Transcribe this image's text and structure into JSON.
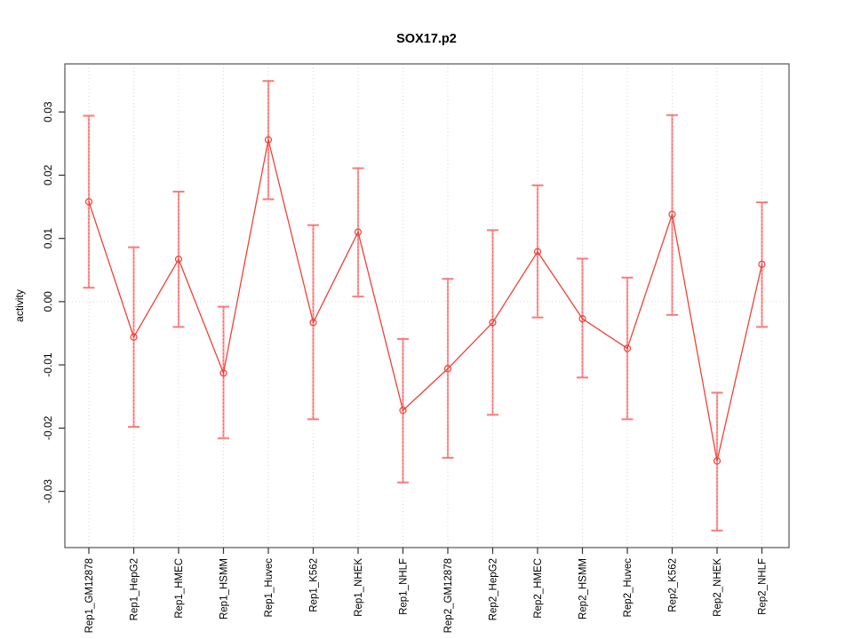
{
  "chart_data": {
    "type": "line",
    "title": "SOX17.p2",
    "xlabel": "",
    "ylabel": "activity",
    "categories": [
      "Rep1_GM12878",
      "Rep1_HepG2",
      "Rep1_HMEC",
      "Rep1_HSMM",
      "Rep1_Huvec",
      "Rep1_K562",
      "Rep1_NHEK",
      "Rep1_NHLF",
      "Rep2_GM12878",
      "Rep2_HepG2",
      "Rep2_HMEC",
      "Rep2_HSMM",
      "Rep2_Huvec",
      "Rep2_K562",
      "Rep2_NHEK",
      "Rep2_NHLF"
    ],
    "series": [
      {
        "name": "activity",
        "marker": "open-circle",
        "values": [
          0.0158,
          -0.0056,
          0.0067,
          -0.0113,
          0.0256,
          -0.0033,
          0.011,
          -0.0172,
          -0.0106,
          -0.0033,
          0.0079,
          -0.0027,
          -0.0074,
          0.0138,
          -0.0252,
          0.0059
        ],
        "error_low": [
          0.0022,
          -0.0198,
          -0.004,
          -0.0216,
          0.0162,
          -0.0186,
          0.0008,
          -0.0286,
          -0.0247,
          -0.0179,
          -0.0025,
          -0.012,
          -0.0186,
          -0.0021,
          -0.0362,
          -0.004
        ],
        "error_high": [
          0.0294,
          0.0086,
          0.0174,
          -0.0008,
          0.0349,
          0.0121,
          0.0211,
          -0.0059,
          0.0036,
          0.0113,
          0.0184,
          0.0068,
          0.0038,
          0.0295,
          -0.0144,
          0.0157
        ]
      }
    ],
    "yticks": [
      0.03,
      0.02,
      0.01,
      0.0,
      -0.01,
      -0.02,
      -0.03
    ],
    "ytick_labels": [
      "0.03",
      "0.02",
      "0.01",
      "0.00",
      "-0.01",
      "-0.02",
      "-0.03"
    ],
    "ylim": [
      -0.0389,
      0.0376
    ],
    "grid": "dotted vertical line at each category; dotted horizontal line at y=0",
    "legend": "none",
    "xtick_rotation_deg": 90,
    "ytick_rotation_deg": 90,
    "colors": {
      "line": "#ee4237",
      "marker": "#ee4237",
      "error_bar": "#ff9b9b",
      "error_bar_dash": "#f05a5a",
      "error_cap": "#fa7a78",
      "grid": "#d7d7d7",
      "frame": "#555555",
      "tick": "#333333",
      "text": "#000000",
      "background": "#ffffff"
    }
  }
}
